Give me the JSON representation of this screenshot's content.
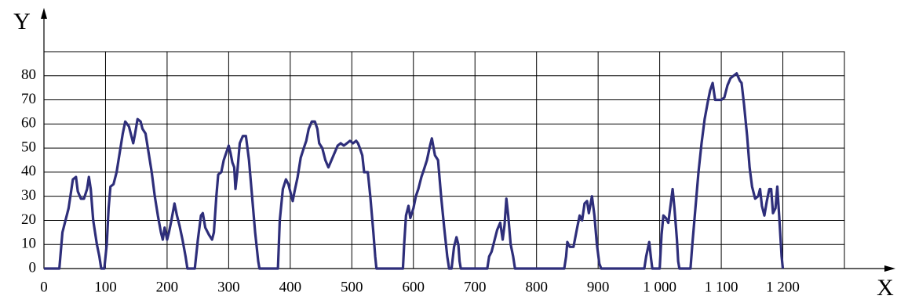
{
  "chart_data": {
    "type": "line",
    "x_label": "X",
    "y_label": "Y",
    "xlim": [
      0,
      1300
    ],
    "ylim": [
      0,
      90
    ],
    "xticks": [
      0,
      100,
      200,
      300,
      400,
      500,
      600,
      700,
      800,
      900,
      {
        "value": 1000,
        "label": "1 000"
      },
      {
        "value": 1100,
        "label": "1 100"
      },
      {
        "value": 1200,
        "label": "1 200"
      }
    ],
    "yticks": [
      0,
      10,
      20,
      30,
      40,
      50,
      60,
      70,
      80
    ],
    "grid": true,
    "x": [
      0,
      25,
      30,
      40,
      47,
      52,
      55,
      60,
      65,
      70,
      73,
      76,
      80,
      86,
      90,
      93,
      98,
      102,
      105,
      108,
      113,
      118,
      123,
      128,
      132,
      138,
      142,
      145,
      148,
      152,
      157,
      160,
      165,
      170,
      175,
      180,
      185,
      190,
      193,
      196,
      200,
      203,
      207,
      212,
      216,
      220,
      225,
      230,
      233,
      245,
      250,
      255,
      258,
      262,
      268,
      273,
      276,
      280,
      283,
      288,
      292,
      296,
      300,
      303,
      306,
      309,
      311,
      314,
      318,
      323,
      328,
      333,
      338,
      343,
      348,
      350,
      380,
      383,
      388,
      393,
      397,
      401,
      404,
      407,
      412,
      417,
      422,
      426,
      430,
      435,
      440,
      444,
      447,
      452,
      457,
      462,
      467,
      472,
      477,
      482,
      487,
      492,
      497,
      502,
      507,
      510,
      513,
      517,
      520,
      526,
      530,
      535,
      538,
      540,
      583,
      585,
      588,
      592,
      595,
      600,
      604,
      608,
      613,
      617,
      622,
      627,
      630,
      635,
      640,
      645,
      650,
      655,
      658,
      662,
      666,
      670,
      673,
      675,
      677,
      720,
      723,
      727,
      730,
      736,
      741,
      745,
      748,
      751,
      754,
      758,
      762,
      765,
      845,
      848,
      850,
      854,
      860,
      866,
      870,
      874,
      878,
      882,
      885,
      890,
      894,
      898,
      902,
      905,
      975,
      978,
      983,
      986,
      988,
      1000,
      1003,
      1006,
      1010,
      1014,
      1018,
      1021,
      1024,
      1028,
      1030,
      1032,
      1050,
      1053,
      1058,
      1063,
      1068,
      1073,
      1078,
      1082,
      1086,
      1090,
      1095,
      1100,
      1105,
      1110,
      1115,
      1120,
      1125,
      1130,
      1133,
      1137,
      1142,
      1146,
      1150,
      1155,
      1160,
      1163,
      1166,
      1170,
      1174,
      1178,
      1181,
      1184,
      1188,
      1191,
      1194,
      1198,
      1200
    ],
    "series": [
      {
        "color": "#2e2e7a",
        "values": [
          0,
          0,
          15,
          25,
          37,
          38,
          32,
          29,
          29,
          33,
          38,
          33,
          20,
          10,
          5,
          0,
          0,
          10,
          25,
          34,
          35,
          40,
          48,
          56,
          61,
          59,
          55,
          52,
          56,
          62,
          61,
          58,
          56,
          48,
          40,
          30,
          22,
          15,
          12,
          17,
          12,
          15,
          20,
          27,
          22,
          18,
          12,
          5,
          0,
          0,
          12,
          22,
          23,
          17,
          14,
          12,
          15,
          30,
          39,
          40,
          45,
          48,
          51,
          48,
          44,
          42,
          33,
          40,
          52,
          55,
          55,
          45,
          30,
          15,
          3,
          0,
          0,
          20,
          33,
          37,
          35,
          31,
          28,
          32,
          38,
          46,
          50,
          53,
          58,
          61,
          61,
          58,
          52,
          50,
          45,
          42,
          45,
          48,
          51,
          52,
          51,
          52,
          53,
          52,
          53,
          52,
          50,
          47,
          40,
          40,
          30,
          15,
          5,
          0,
          0,
          10,
          22,
          26,
          21,
          25,
          30,
          33,
          38,
          41,
          45,
          51,
          54,
          47,
          45,
          30,
          17,
          5,
          0,
          0,
          9,
          13,
          10,
          3,
          0,
          0,
          5,
          7,
          10,
          16,
          19,
          12,
          18,
          29,
          22,
          10,
          5,
          0,
          0,
          5,
          11,
          9,
          9,
          17,
          22,
          20,
          27,
          28,
          23,
          30,
          22,
          10,
          2,
          0,
          0,
          5,
          11,
          4,
          0,
          0,
          14,
          22,
          21,
          19,
          27,
          33,
          25,
          12,
          3,
          0,
          0,
          10,
          25,
          40,
          52,
          62,
          69,
          74,
          77,
          70,
          70,
          70,
          71,
          76,
          79,
          80,
          81,
          78,
          77,
          68,
          55,
          42,
          34,
          29,
          30,
          33,
          26,
          22,
          28,
          33,
          33,
          23,
          25,
          34,
          22,
          5,
          0
        ]
      }
    ]
  }
}
